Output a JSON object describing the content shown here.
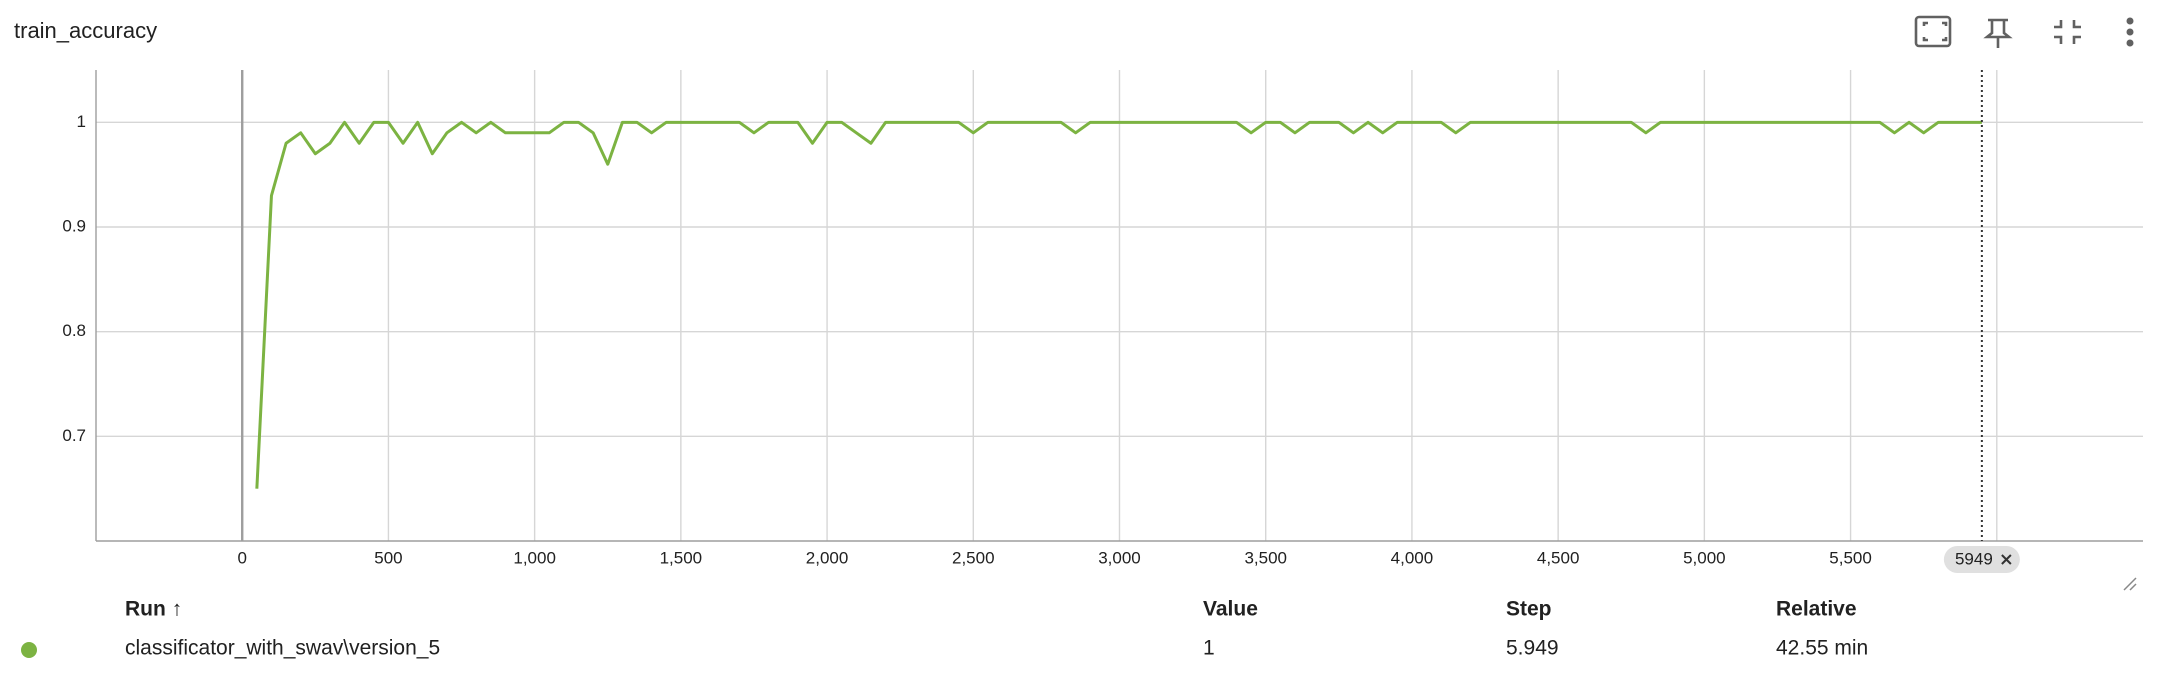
{
  "header": {
    "title": "train_accuracy"
  },
  "chart_data": {
    "type": "line",
    "x": [
      50,
      100,
      150,
      200,
      250,
      300,
      350,
      400,
      450,
      500,
      550,
      600,
      650,
      700,
      750,
      800,
      850,
      900,
      950,
      1000,
      1050,
      1100,
      1150,
      1200,
      1250,
      1300,
      1350,
      1400,
      1450,
      1500,
      1550,
      1600,
      1650,
      1700,
      1750,
      1800,
      1850,
      1900,
      1950,
      2000,
      2050,
      2100,
      2150,
      2200,
      2250,
      2300,
      2350,
      2400,
      2450,
      2500,
      2550,
      2600,
      2650,
      2700,
      2750,
      2800,
      2850,
      2900,
      2950,
      3000,
      3050,
      3100,
      3150,
      3200,
      3250,
      3300,
      3350,
      3400,
      3450,
      3500,
      3550,
      3600,
      3650,
      3700,
      3750,
      3800,
      3850,
      3900,
      3950,
      4000,
      4050,
      4100,
      4150,
      4200,
      4250,
      4300,
      4350,
      4400,
      4450,
      4500,
      4550,
      4600,
      4650,
      4700,
      4750,
      4800,
      4850,
      4900,
      4950,
      5000,
      5050,
      5100,
      5150,
      5200,
      5250,
      5300,
      5350,
      5400,
      5450,
      5500,
      5550,
      5600,
      5650,
      5700,
      5750,
      5800,
      5850,
      5900,
      5949
    ],
    "series": [
      {
        "color": "#7cb342",
        "values": [
          0.65,
          0.93,
          0.98,
          0.99,
          0.97,
          0.98,
          1,
          0.98,
          1,
          1,
          0.98,
          1,
          0.97,
          0.99,
          1,
          0.99,
          1,
          0.99,
          0.99,
          0.99,
          0.99,
          1,
          1,
          0.99,
          0.96,
          1,
          1,
          0.99,
          1,
          1,
          1,
          1,
          1,
          1,
          0.99,
          1,
          1,
          1,
          0.98,
          1,
          1,
          0.99,
          0.98,
          1,
          1,
          1,
          1,
          1,
          1,
          0.99,
          1,
          1,
          1,
          1,
          1,
          1,
          0.99,
          1,
          1,
          1,
          1,
          1,
          1,
          1,
          1,
          1,
          1,
          1,
          0.99,
          1,
          1,
          0.99,
          1,
          1,
          1,
          0.99,
          1,
          0.99,
          1,
          1,
          1,
          1,
          0.99,
          1,
          1,
          1,
          1,
          1,
          1,
          1,
          1,
          1,
          1,
          1,
          1,
          0.99,
          1,
          1,
          1,
          1,
          1,
          1,
          1,
          1,
          1,
          1,
          1,
          1,
          1,
          1,
          1,
          1,
          0.99,
          1,
          0.99,
          1,
          1,
          1,
          1
        ]
      }
    ],
    "xlim": [
      -500,
      6500
    ],
    "ylim": [
      0.6,
      1.05
    ],
    "xticks": [
      0,
      500,
      {
        "value": 1000,
        "label": "1,000"
      },
      {
        "value": 1500,
        "label": "1,500"
      },
      {
        "value": 2000,
        "label": "2,000"
      },
      {
        "value": 2500,
        "label": "2,500"
      },
      {
        "value": 3000,
        "label": "3,000"
      },
      {
        "value": 3500,
        "label": "3,500"
      },
      {
        "value": 4000,
        "label": "4,000"
      },
      {
        "value": 4500,
        "label": "4,500"
      },
      {
        "value": 5000,
        "label": "5,000"
      },
      {
        "value": 5500,
        "label": "5,500"
      },
      {
        "value": 6000,
        "label": "6,000"
      }
    ],
    "yticks": [
      0.7,
      0.8,
      0.9,
      1
    ],
    "grid": true,
    "cursor_step": 5949
  },
  "table": {
    "columns": [
      "Run ↑",
      "Value",
      "Step",
      "Relative"
    ],
    "rows": [
      [
        "classificator_with_swav\\version_5",
        "1",
        "5.949",
        "42.55 min"
      ]
    ]
  }
}
